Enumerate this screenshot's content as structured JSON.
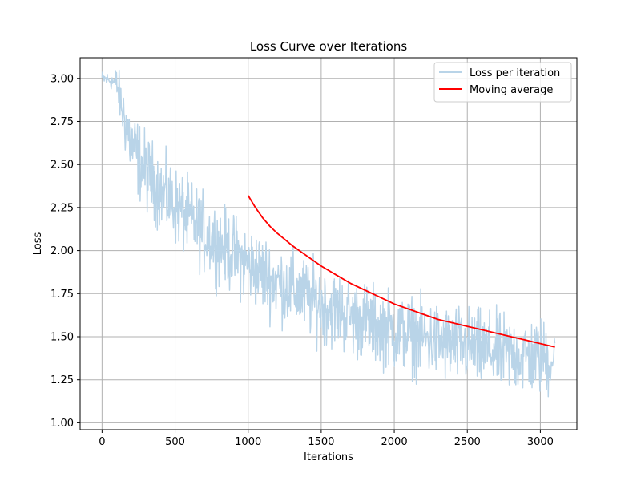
{
  "chart_data": {
    "type": "line",
    "title": "Loss Curve over Iterations",
    "xlabel": "Iterations",
    "ylabel": "Loss",
    "xlim": [
      -150,
      3250
    ],
    "ylim": [
      0.96,
      3.12
    ],
    "xticks": [
      0,
      500,
      1000,
      1500,
      2000,
      2500,
      3000
    ],
    "xtick_labels": [
      "0",
      "500",
      "1000",
      "1500",
      "2000",
      "2500",
      "3000"
    ],
    "yticks": [
      1.0,
      1.25,
      1.5,
      1.75,
      2.0,
      2.25,
      2.5,
      2.75,
      3.0
    ],
    "ytick_labels": [
      "1.00",
      "1.25",
      "1.50",
      "1.75",
      "2.00",
      "2.25",
      "2.50",
      "2.75",
      "3.00"
    ],
    "grid": true,
    "legend_position": "top-right",
    "series": [
      {
        "name": "Loss per iteration",
        "color": "#b9d4e8",
        "style": "noisy",
        "x": [
          0,
          50,
          100,
          150,
          200,
          250,
          300,
          350,
          400,
          450,
          500,
          550,
          600,
          650,
          700,
          750,
          800,
          850,
          900,
          950,
          1000,
          1050,
          1100,
          1150,
          1200,
          1250,
          1300,
          1350,
          1400,
          1450,
          1500,
          1550,
          1600,
          1650,
          1700,
          1750,
          1800,
          1850,
          1900,
          1950,
          2000,
          2050,
          2100,
          2150,
          2200,
          2250,
          2300,
          2350,
          2400,
          2450,
          2500,
          2550,
          2600,
          2650,
          2700,
          2750,
          2800,
          2850,
          2900,
          2950,
          3000,
          3050,
          3100
        ],
        "y": [
          3.0,
          2.99,
          2.97,
          2.78,
          2.62,
          2.53,
          2.46,
          2.4,
          2.35,
          2.3,
          2.26,
          2.22,
          2.18,
          2.14,
          2.1,
          2.07,
          2.04,
          2.01,
          1.98,
          1.95,
          1.92,
          1.89,
          1.87,
          1.84,
          1.82,
          1.79,
          1.77,
          1.75,
          1.73,
          1.71,
          1.69,
          1.67,
          1.65,
          1.64,
          1.62,
          1.6,
          1.59,
          1.57,
          1.56,
          1.55,
          1.53,
          1.52,
          1.51,
          1.5,
          1.49,
          1.48,
          1.47,
          1.46,
          1.45,
          1.45,
          1.44,
          1.43,
          1.42,
          1.42,
          1.41,
          1.4,
          1.4,
          1.39,
          1.39,
          1.38,
          1.38,
          1.37,
          1.37
        ],
        "noise_amplitude": 0.11
      },
      {
        "name": "Moving average",
        "color": "#ff0000",
        "style": "smooth",
        "x": [
          1000,
          1050,
          1100,
          1150,
          1200,
          1300,
          1400,
          1500,
          1600,
          1700,
          1800,
          1900,
          2000,
          2100,
          2200,
          2300,
          2400,
          2500,
          2600,
          2700,
          2800,
          2900,
          3000,
          3100
        ],
        "y": [
          2.32,
          2.25,
          2.19,
          2.14,
          2.1,
          2.03,
          1.97,
          1.91,
          1.86,
          1.81,
          1.77,
          1.73,
          1.69,
          1.66,
          1.63,
          1.6,
          1.58,
          1.56,
          1.54,
          1.52,
          1.5,
          1.48,
          1.46,
          1.44
        ]
      }
    ]
  }
}
